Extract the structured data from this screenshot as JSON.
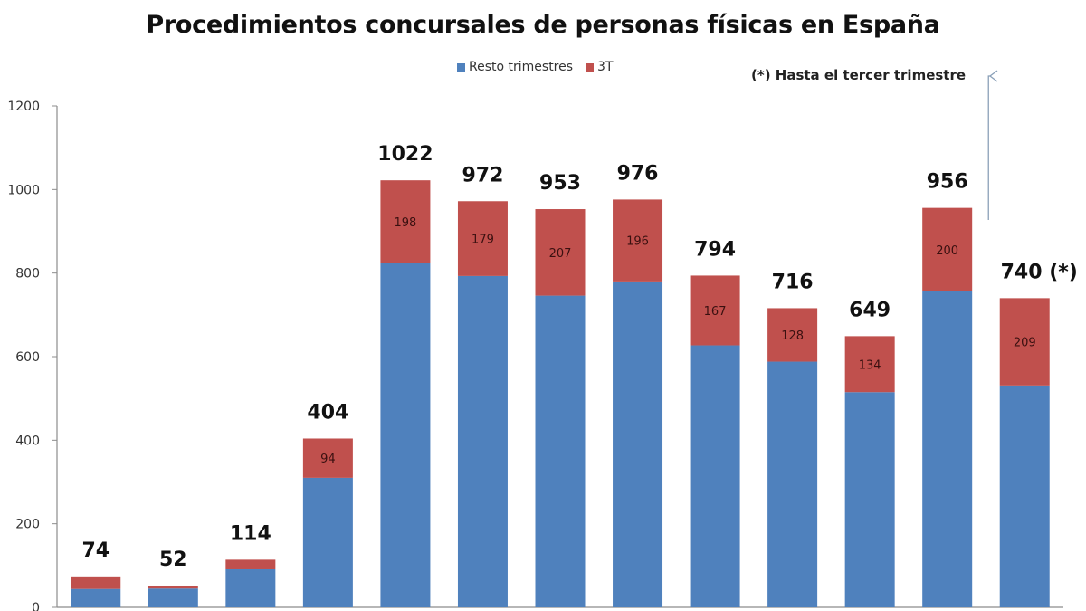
{
  "chart_data": {
    "type": "bar",
    "stacked": true,
    "title": "Procedimientos concursales de personas físicas en España",
    "categories": [
      "",
      "",
      "",
      "",
      "",
      "",
      "",
      "",
      "",
      "",
      "",
      "",
      ""
    ],
    "series": [
      {
        "name": "Resto trimestres",
        "color": "#4f81bd",
        "values": [
          44,
          45,
          91,
          310,
          824,
          793,
          746,
          780,
          627,
          588,
          515,
          756,
          531
        ]
      },
      {
        "name": "3T",
        "color": "#c0504d",
        "values": [
          30,
          7,
          23,
          94,
          198,
          179,
          207,
          196,
          167,
          128,
          134,
          200,
          209
        ]
      }
    ],
    "segment_labels_3T": [
      "",
      "",
      "",
      "94",
      "198",
      "179",
      "207",
      "196",
      "167",
      "128",
      "134",
      "200",
      "209"
    ],
    "total_labels": [
      "74",
      "52",
      "114",
      "404",
      "1022",
      "972",
      "953",
      "976",
      "794",
      "716",
      "649",
      "956",
      "740 (*)"
    ],
    "yticks": [
      "0",
      "200",
      "400",
      "600",
      "800",
      "1000",
      "1200"
    ],
    "ylim": [
      0,
      1200
    ],
    "grid": false,
    "legend_position": "top-center",
    "annotation": "(*) Hasta el tercer trimestre"
  }
}
